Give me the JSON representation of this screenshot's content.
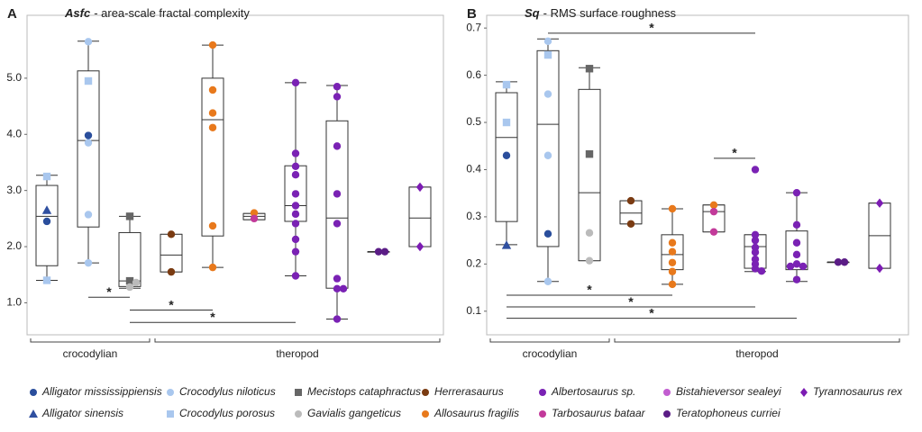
{
  "chart_data": [
    {
      "type": "box",
      "panel": "A",
      "title_term": "Asfc",
      "title": "- area-scale fractal complexity",
      "ylim": [
        0.43,
        6.12
      ],
      "yticks": [
        {
          "value": 1,
          "label": "1.0"
        },
        {
          "value": 2,
          "label": "2.0"
        },
        {
          "value": 3,
          "label": "3.0"
        },
        {
          "value": 4,
          "label": "4.0"
        },
        {
          "value": 5,
          "label": "5.0"
        }
      ],
      "groups": [
        {
          "name": "crocodylian",
          "boxes": [
            0,
            1,
            2
          ]
        },
        {
          "name": "theropod",
          "boxes": [
            3,
            4,
            5,
            6,
            7,
            8,
            9
          ]
        }
      ],
      "boxes": [
        {
          "stats": [
            1.4,
            1.66,
            2.54,
            3.09,
            3.27
          ],
          "points": [
            {
              "species": 3,
              "values": [
                3.25,
                1.4
              ]
            },
            {
              "species": 1,
              "values": [
                2.65
              ]
            },
            {
              "species": 0,
              "values": [
                2.45
              ]
            }
          ]
        },
        {
          "stats": [
            1.71,
            2.35,
            3.89,
            5.13,
            5.66
          ],
          "points": [
            {
              "species": 2,
              "values": [
                5.65,
                3.85,
                2.57,
                1.71
              ]
            },
            {
              "species": 3,
              "values": [
                4.95
              ]
            },
            {
              "species": 0,
              "values": [
                3.98
              ]
            }
          ]
        },
        {
          "stats": [
            1.26,
            1.29,
            1.39,
            2.25,
            2.54
          ],
          "points": [
            {
              "species": 4,
              "values": [
                2.54,
                1.39
              ]
            },
            {
              "species": 5,
              "values": [
                1.36,
                1.28
              ]
            }
          ]
        },
        {
          "stats": [
            1.55,
            1.55,
            1.85,
            2.22,
            2.22
          ],
          "points": [
            {
              "species": 6,
              "values": [
                2.22,
                1.55
              ]
            }
          ]
        },
        {
          "stats": [
            1.63,
            2.19,
            4.26,
            5.0,
            5.59
          ],
          "points": [
            {
              "species": 7,
              "values": [
                5.59,
                4.79,
                4.38,
                4.12,
                2.37,
                1.63
              ]
            }
          ]
        },
        {
          "stats": [
            2.48,
            2.48,
            2.54,
            2.59,
            2.59
          ],
          "points": [
            {
              "species": 7,
              "values": [
                2.6
              ]
            },
            {
              "species": 9,
              "values": [
                2.5
              ]
            }
          ]
        },
        {
          "stats": [
            1.48,
            2.45,
            2.73,
            3.44,
            4.92
          ],
          "points": [
            {
              "species": 8,
              "values": [
                4.92,
                3.66,
                3.43,
                3.28,
                2.94,
                2.73,
                2.58,
                2.41,
                2.13,
                1.91,
                1.48
              ]
            }
          ]
        },
        {
          "stats": [
            0.71,
            1.26,
            2.51,
            4.24,
            4.87
          ],
          "points": [
            {
              "species": 8,
              "values": [
                4.85,
                4.67,
                3.79,
                2.94,
                2.41,
                1.43,
                1.25,
                1.25,
                0.71
              ]
            }
          ]
        },
        {
          "stats": [
            1.91,
            1.91,
            1.91,
            1.91,
            1.91
          ],
          "points": [
            {
              "species": 11,
              "values": [
                1.91,
                1.91
              ]
            }
          ]
        },
        {
          "stats": [
            2.0,
            2.0,
            2.51,
            3.06,
            3.06
          ],
          "points": [
            {
              "species": 12,
              "values": [
                3.06,
                2.0
              ]
            }
          ]
        }
      ],
      "brackets": [
        {
          "from": 1,
          "to": 2,
          "y": 1.1,
          "label": "*"
        },
        {
          "from": 2,
          "to": 4,
          "y": 0.87,
          "label": "*"
        },
        {
          "from": 2,
          "to": 6,
          "y": 0.65,
          "label": "*"
        }
      ]
    },
    {
      "type": "box",
      "panel": "B",
      "title_term": "Sq",
      "title": "- RMS surface roughness",
      "ylim": [
        0.05,
        0.727
      ],
      "yticks": [
        0.1,
        0.2,
        0.3,
        0.4,
        0.5,
        0.6,
        0.7
      ],
      "groups": [
        {
          "name": "crocodylian",
          "boxes": [
            0,
            1,
            2
          ]
        },
        {
          "name": "theropod",
          "boxes": [
            3,
            4,
            5,
            6,
            7,
            8,
            9
          ]
        }
      ],
      "boxes": [
        {
          "stats": [
            0.241,
            0.29,
            0.468,
            0.563,
            0.586
          ],
          "points": [
            {
              "species": 3,
              "values": [
                0.58,
                0.5
              ]
            },
            {
              "species": 0,
              "values": [
                0.43
              ]
            },
            {
              "species": 1,
              "values": [
                0.24
              ]
            }
          ]
        },
        {
          "stats": [
            0.163,
            0.237,
            0.496,
            0.652,
            0.677
          ],
          "points": [
            {
              "species": 2,
              "values": [
                0.672,
                0.56,
                0.43,
                0.163
              ]
            },
            {
              "species": 3,
              "values": [
                0.643
              ]
            },
            {
              "species": 0,
              "values": [
                0.264
              ]
            }
          ]
        },
        {
          "stats": [
            0.207,
            0.207,
            0.351,
            0.57,
            0.616
          ],
          "points": [
            {
              "species": 4,
              "values": [
                0.614,
                0.433
              ]
            },
            {
              "species": 5,
              "values": [
                0.266,
                0.207
              ]
            }
          ]
        },
        {
          "stats": [
            0.285,
            0.285,
            0.308,
            0.334,
            0.334
          ],
          "points": [
            {
              "species": 6,
              "values": [
                0.334,
                0.285
              ]
            }
          ]
        },
        {
          "stats": [
            0.157,
            0.188,
            0.22,
            0.262,
            0.317
          ],
          "points": [
            {
              "species": 7,
              "values": [
                0.317,
                0.245,
                0.226,
                0.203,
                0.184,
                0.157
              ]
            }
          ]
        },
        {
          "stats": [
            0.268,
            0.268,
            0.311,
            0.325,
            0.325
          ],
          "points": [
            {
              "species": 7,
              "values": [
                0.325
              ]
            },
            {
              "species": 9,
              "values": [
                0.311,
                0.268
              ]
            }
          ]
        },
        {
          "stats": [
            0.184,
            0.191,
            0.237,
            0.262,
            0.262
          ],
          "points": [
            {
              "species": 8,
              "values": [
                0.4,
                0.262,
                0.25,
                0.235,
                0.225,
                0.21,
                0.2,
                0.19,
                0.185
              ]
            }
          ]
        },
        {
          "stats": [
            0.163,
            0.188,
            0.195,
            0.27,
            0.351
          ],
          "points": [
            {
              "species": 8,
              "values": [
                0.351,
                0.283,
                0.245,
                0.22,
                0.2,
                0.195,
                0.195,
                0.167
              ]
            }
          ]
        },
        {
          "stats": [
            0.204,
            0.204,
            0.204,
            0.204,
            0.204
          ],
          "points": [
            {
              "species": 11,
              "values": [
                0.204,
                0.204
              ]
            }
          ]
        },
        {
          "stats": [
            0.191,
            0.191,
            0.26,
            0.329,
            0.329
          ],
          "points": [
            {
              "species": 12,
              "values": [
                0.329,
                0.191
              ]
            }
          ]
        }
      ],
      "brackets": [
        {
          "from": 1,
          "to": 6,
          "y": 0.689,
          "label": "*"
        },
        {
          "from": 5,
          "to": 6,
          "y": 0.424,
          "label": "*"
        },
        {
          "from": 0,
          "to": 4,
          "y": 0.134,
          "label": "*"
        },
        {
          "from": 0,
          "to": 6,
          "y": 0.109,
          "label": "*"
        },
        {
          "from": 0,
          "to": 7,
          "y": 0.085,
          "label": "*"
        }
      ]
    }
  ],
  "legend": [
    {
      "name": "Alligator mississippiensis",
      "color": "#2a4e9c",
      "marker": "circle"
    },
    {
      "name": "Alligator sinensis",
      "color": "#2f4fa0",
      "marker": "triangle"
    },
    {
      "name": "Crocodylus niloticus",
      "color": "#a9c7ee",
      "marker": "circle"
    },
    {
      "name": "Crocodylus porosus",
      "color": "#a9c7ee",
      "marker": "square"
    },
    {
      "name": "Mecistops cataphractus",
      "color": "#666666",
      "marker": "square"
    },
    {
      "name": "Gavialis gangeticus",
      "color": "#bbbbbb",
      "marker": "circle"
    },
    {
      "name": "Herrerasaurus",
      "color": "#7a3b12",
      "marker": "circle"
    },
    {
      "name": "Allosaurus fragilis",
      "color": "#e8791c",
      "marker": "circle"
    },
    {
      "name": "Albertosaurus sp.",
      "color": "#7a22b4",
      "marker": "circle"
    },
    {
      "name": "Tarbosaurus bataar",
      "color": "#c23a9a",
      "marker": "circle"
    },
    {
      "name": "Bistahieversor sealeyi",
      "color": "#c25dd0",
      "marker": "circle"
    },
    {
      "name": "Teratophoneus curriei",
      "color": "#5b1d86",
      "marker": "circle"
    },
    {
      "name": "Tyrannosaurus rex",
      "color": "#7c1cb3",
      "marker": "diamond"
    }
  ]
}
